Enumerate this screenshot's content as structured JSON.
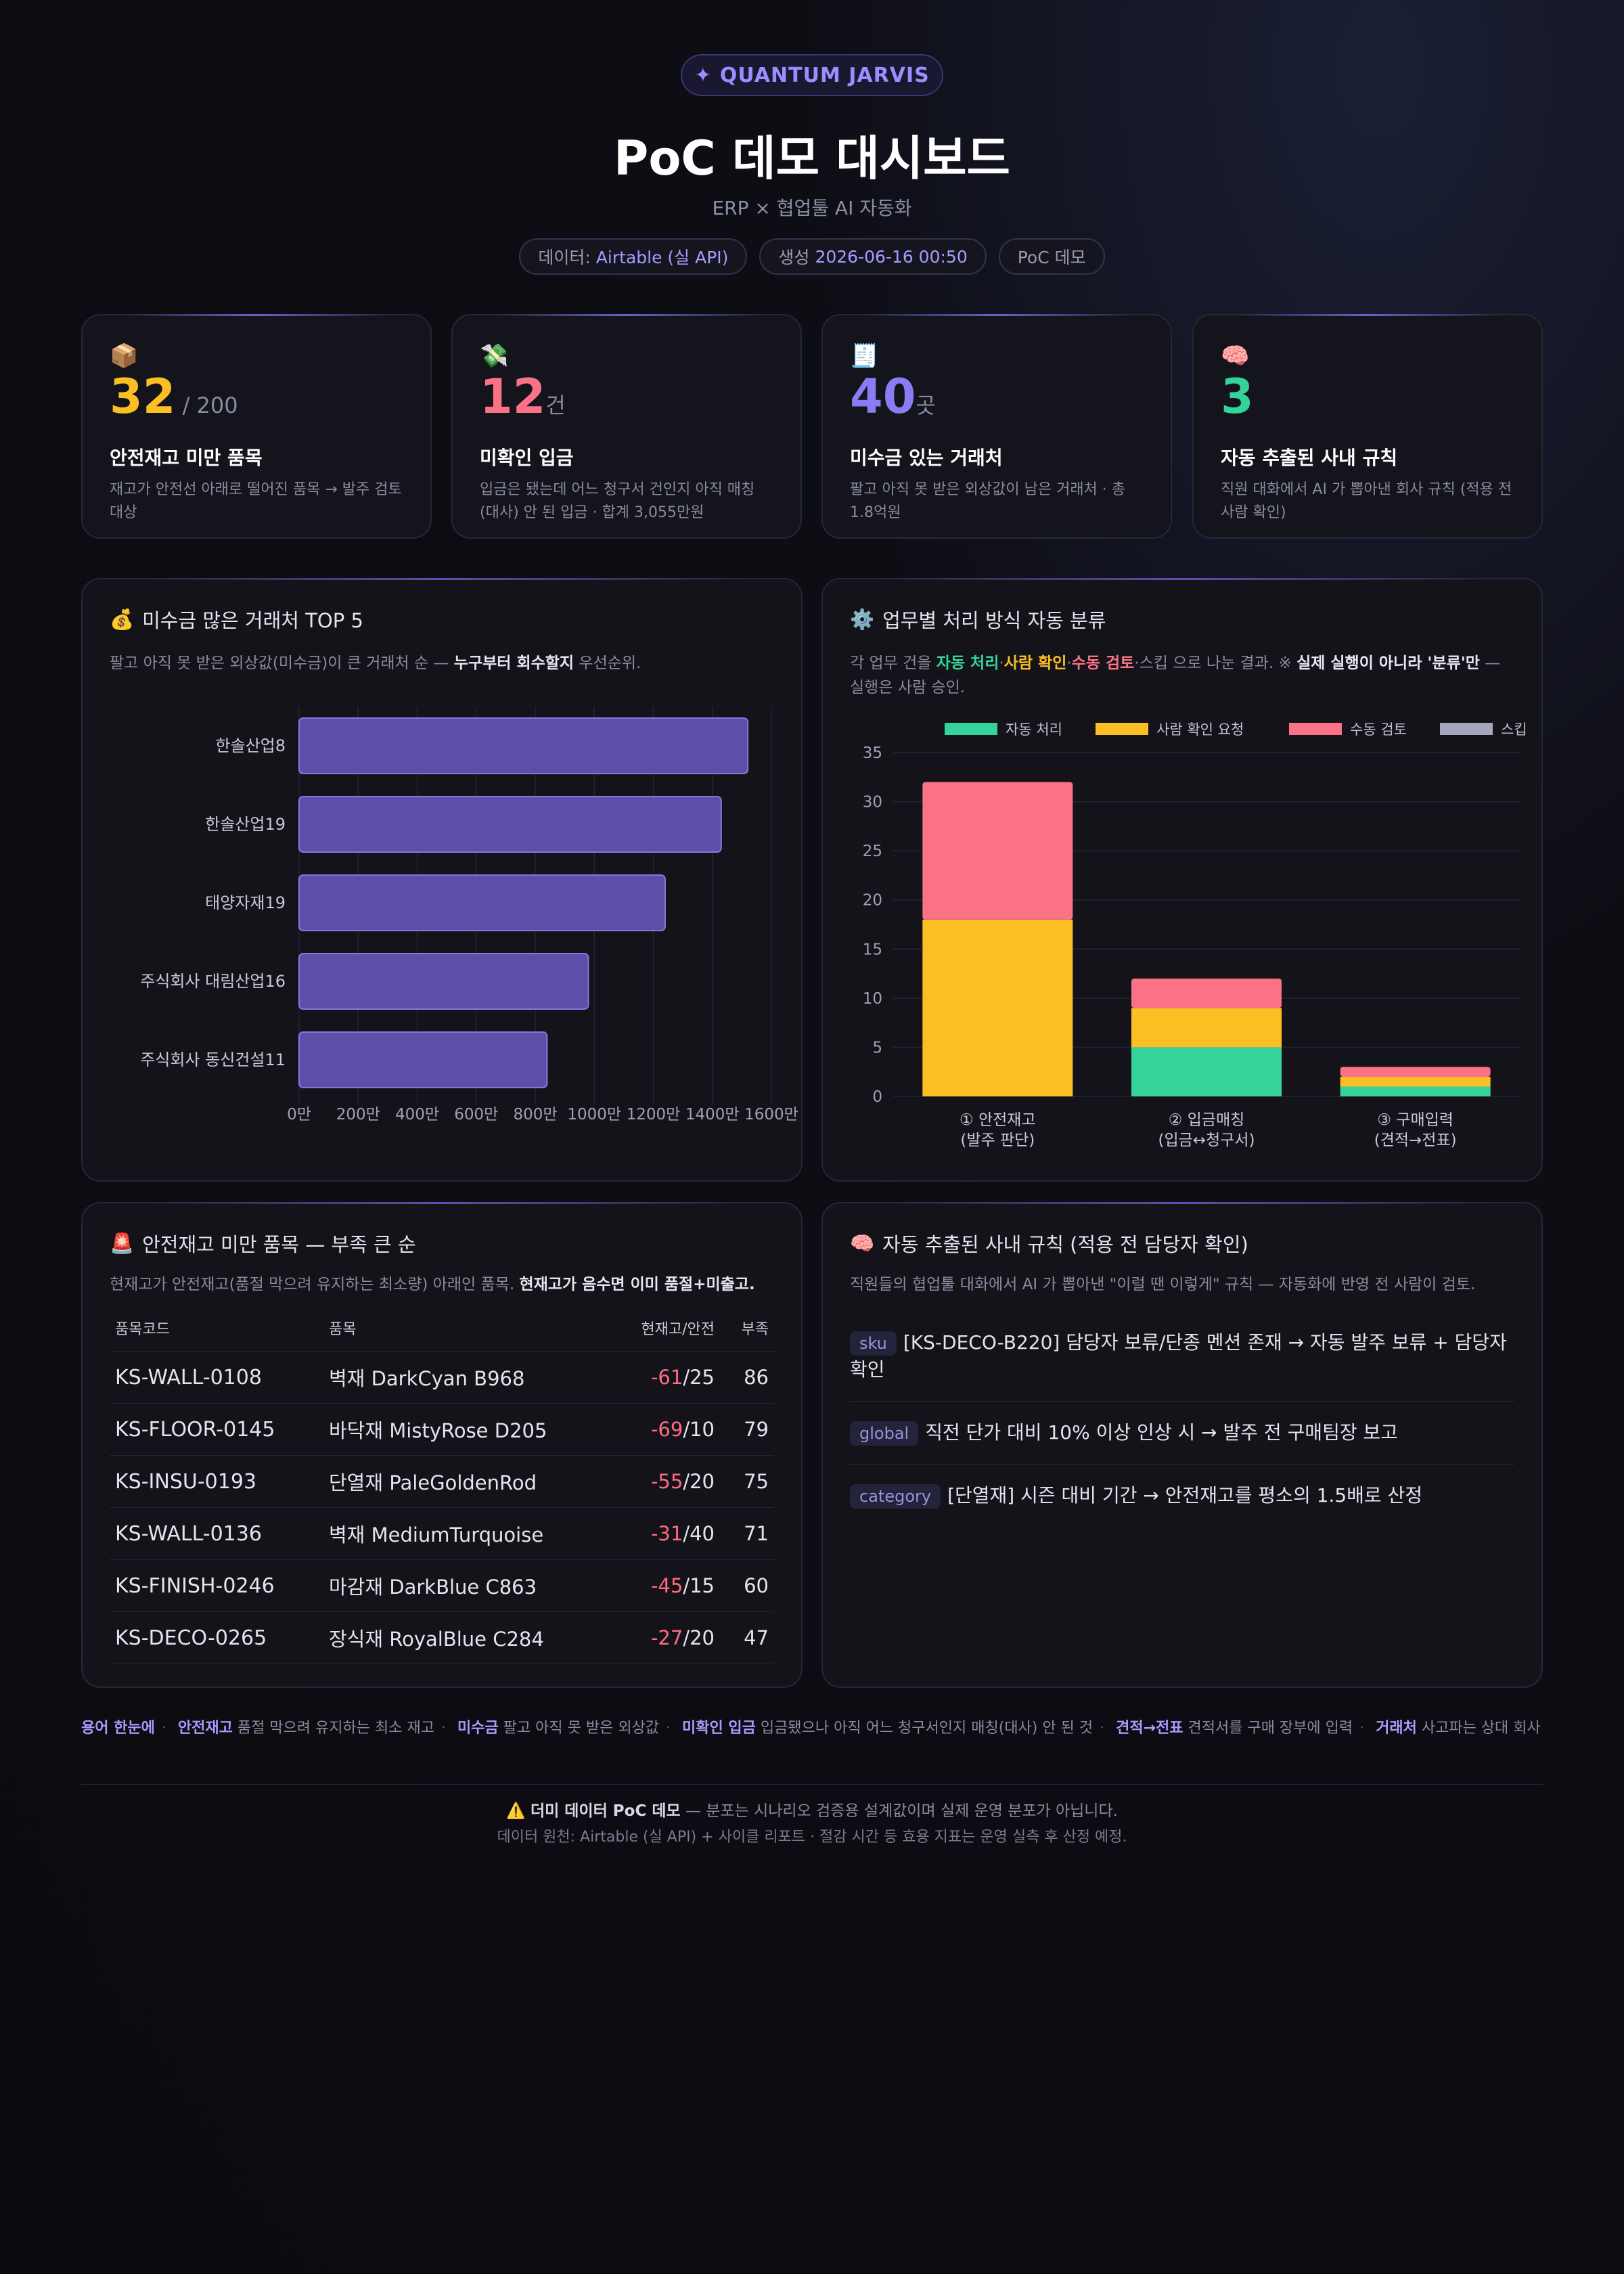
{
  "header": {
    "badge": "✦ QUANTUM JARVIS",
    "title": "PoC 데모 대시보드",
    "subtitle": "ERP × 협업툴 AI 자동화",
    "pills": [
      {
        "label": "데이터:",
        "value": "Airtable (실 API)"
      },
      {
        "label": "생성",
        "value": "2026-06-16 00:50"
      },
      {
        "label": "PoC 데모",
        "value": ""
      }
    ]
  },
  "stats": [
    {
      "icon": "📦",
      "value": "32",
      "unit": " / 200",
      "color": "#fbbf24",
      "label": "안전재고 미만 품목",
      "desc": "재고가 안전선 아래로 떨어진 품목 → 발주 검토 대상"
    },
    {
      "icon": "💸",
      "value": "12",
      "unit": "건",
      "color": "#fb7185",
      "label": "미확인 입금",
      "desc": "입금은 됐는데 어느 청구서 건인지 아직 매칭(대사) 안 된 입금 · 합계 3,055만원"
    },
    {
      "icon": "🧾",
      "value": "40",
      "unit": "곳",
      "color": "#8b7cf6",
      "label": "미수금 있는 거래처",
      "desc": "팔고 아직 못 받은 외상값이 남은 거래처 · 총 1.8억원"
    },
    {
      "icon": "🧠",
      "value": "3",
      "unit": "",
      "color": "#34d399",
      "label": "자동 추출된 사내 규칙",
      "desc": "직원 대화에서 AI 가 뽑아낸 회사 규칙 (적용 전 사람 확인)"
    }
  ],
  "receivables": {
    "icon": "💰",
    "title": "미수금 많은 거래처 TOP 5",
    "subtitle_pre": "팔고 아직 못 받은 외상값(미수금)이 큰 거래처 순 — ",
    "subtitle_bold": "누구부터 회수할지",
    "subtitle_post": " 우선순위."
  },
  "classify": {
    "icon": "⚙️",
    "title": "업무별 처리 방식 자동 분류",
    "sub_pre": "각 업무 건을 ",
    "sub_auto": "자동 처리",
    "sub_sep1": "·",
    "sub_human": "사람 확인",
    "sub_sep2": "·",
    "sub_manual": "수동 검토",
    "sub_sep3": "·",
    "sub_mid": "스킵 으로 나눈 결과. ※ ",
    "sub_bold": "실제 실행이 아니라 '분류'만",
    "sub_post": " — 실행은 사람 승인."
  },
  "chart_data": [
    {
      "type": "bar",
      "orientation": "horizontal",
      "categories": [
        "한솔산업8",
        "한솔산업19",
        "태양자재19",
        "주식회사 대림산업16",
        "주식회사 동신건설11"
      ],
      "values": [
        1520,
        1430,
        1240,
        980,
        840
      ],
      "xlim": [
        0,
        1600
      ],
      "xticks": [
        "0만",
        "200만",
        "400만",
        "600만",
        "800만",
        "1000만",
        "1200만",
        "1400만",
        "1600만"
      ],
      "color": "#5b4fa8",
      "grid": true
    },
    {
      "type": "bar",
      "stacked": true,
      "categories": [
        [
          "① 안전재고",
          "(발주 판단)"
        ],
        [
          "② 입금매칭",
          "(입금↔청구서)"
        ],
        [
          "③ 구매입력",
          "(견적→전표)"
        ]
      ],
      "series": [
        {
          "name": "자동 처리",
          "color": "#34d399",
          "values": [
            0,
            5,
            1
          ]
        },
        {
          "name": "사람 확인 요청",
          "color": "#fbbf24",
          "values": [
            18,
            4,
            1
          ]
        },
        {
          "name": "수동 검토",
          "color": "#fb7185",
          "values": [
            14,
            3,
            1
          ]
        },
        {
          "name": "스킵",
          "color": "#a5a5bd",
          "values": [
            0,
            0,
            0
          ]
        }
      ],
      "ylim": [
        0,
        35
      ],
      "yticks": [
        0,
        5,
        10,
        15,
        20,
        25,
        30,
        35
      ],
      "legend": "top",
      "grid": true
    }
  ],
  "stock": {
    "icon": "🚨",
    "title": "안전재고 미만 품목 — 부족 큰 순",
    "sub_pre": "현재고가 안전재고(품절 막으려 유지하는 최소량) 아래인 품목. ",
    "sub_bold": "현재고가 음수면 이미 품절+미출고.",
    "headers": [
      "품목코드",
      "품목",
      "현재고/안전",
      "부족"
    ],
    "rows": [
      {
        "code": "KS-WALL-0108",
        "name": "벽재 DarkCyan B968",
        "cur": "-61",
        "safe": "/25",
        "short": "86"
      },
      {
        "code": "KS-FLOOR-0145",
        "name": "바닥재 MistyRose D205",
        "cur": "-69",
        "safe": "/10",
        "short": "79"
      },
      {
        "code": "KS-INSU-0193",
        "name": "단열재 PaleGoldenRod",
        "cur": "-55",
        "safe": "/20",
        "short": "75"
      },
      {
        "code": "KS-WALL-0136",
        "name": "벽재 MediumTurquoise",
        "cur": "-31",
        "safe": "/40",
        "short": "71"
      },
      {
        "code": "KS-FINISH-0246",
        "name": "마감재 DarkBlue C863",
        "cur": "-45",
        "safe": "/15",
        "short": "60"
      },
      {
        "code": "KS-DECO-0265",
        "name": "장식재 RoyalBlue C284",
        "cur": "-27",
        "safe": "/20",
        "short": "47"
      }
    ]
  },
  "rules": {
    "icon": "🧠",
    "title": "자동 추출된 사내 규칙 (적용 전 담당자 확인)",
    "subtitle": "직원들의 협업툴 대화에서 AI 가 뽑아낸 \"이럴 땐 이렇게\" 규칙 — 자동화에 반영 전 사람이 검토.",
    "items": [
      {
        "tag": "sku",
        "text": "[KS-DECO-B220] 담당자 보류/단종 멘션 존재 → 자동 발주 보류 + 담당자 확인"
      },
      {
        "tag": "global",
        "text": "직전 단가 대비 10% 이상 인상 시 → 발주 전 구매팀장 보고"
      },
      {
        "tag": "category",
        "text": "[단열재] 시즌 대비 기간 → 안전재고를 평소의 1.5배로 산정"
      }
    ]
  },
  "glossary": {
    "title": "용어 한눈에",
    "items": [
      {
        "term": "안전재고",
        "def": "품절 막으려 유지하는 최소 재고"
      },
      {
        "term": "미수금",
        "def": "팔고 아직 못 받은 외상값"
      },
      {
        "term": "미확인 입금",
        "def": "입금됐으나 아직 어느 청구서인지 매칭(대사) 안 된 것"
      },
      {
        "term": "견적→전표",
        "def": "견적서를 구매 장부에 입력"
      },
      {
        "term": "거래처",
        "def": "사고파는 상대 회사"
      }
    ]
  },
  "footer": {
    "warn": "⚠️",
    "bold": "더미 데이터 PoC 데모",
    "line1": " — 분포는 시나리오 검증용 설계값이며 실제 운영 분포가 아닙니다.",
    "line2": "데이터 원천: Airtable (실 API) + 사이클 리포트 · 절감 시간 등 효용 지표는 운영 실측 후 산정 예정."
  }
}
